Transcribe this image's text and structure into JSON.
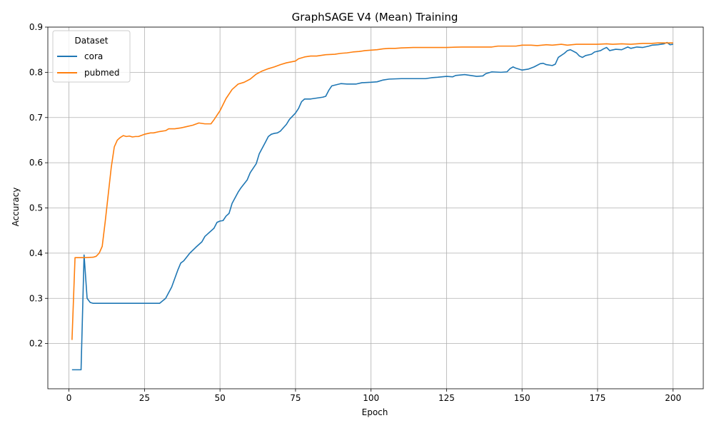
{
  "chart_data": {
    "type": "line",
    "title": "GraphSAGE V4 (Mean) Training",
    "xlabel": "Epoch",
    "ylabel": "Accuracy",
    "xlim": [
      -7,
      210
    ],
    "ylim": [
      0.1,
      0.9
    ],
    "xticks": [
      0,
      25,
      50,
      75,
      100,
      125,
      150,
      175,
      200
    ],
    "yticks": [
      0.2,
      0.3,
      0.4,
      0.5,
      0.6,
      0.7,
      0.8,
      0.9
    ],
    "grid": true,
    "legend": {
      "title": "Dataset",
      "placement": "top-left"
    },
    "series": [
      {
        "name": "cora",
        "color": "#1f77b4",
        "points": [
          [
            1,
            0.142
          ],
          [
            4,
            0.142
          ],
          [
            5,
            0.396
          ],
          [
            6,
            0.3
          ],
          [
            7,
            0.291
          ],
          [
            8,
            0.289
          ],
          [
            15,
            0.289
          ],
          [
            20,
            0.289
          ],
          [
            25,
            0.289
          ],
          [
            30,
            0.289
          ],
          [
            32,
            0.3
          ],
          [
            34,
            0.325
          ],
          [
            36,
            0.362
          ],
          [
            37,
            0.378
          ],
          [
            38,
            0.383
          ],
          [
            40,
            0.4
          ],
          [
            42,
            0.413
          ],
          [
            44,
            0.425
          ],
          [
            45,
            0.437
          ],
          [
            48,
            0.455
          ],
          [
            49,
            0.468
          ],
          [
            50,
            0.471
          ],
          [
            51,
            0.472
          ],
          [
            52,
            0.482
          ],
          [
            53,
            0.488
          ],
          [
            54,
            0.51
          ],
          [
            56,
            0.535
          ],
          [
            57,
            0.545
          ],
          [
            59,
            0.562
          ],
          [
            60,
            0.578
          ],
          [
            62,
            0.598
          ],
          [
            63,
            0.62
          ],
          [
            65,
            0.645
          ],
          [
            66,
            0.658
          ],
          [
            67,
            0.663
          ],
          [
            68,
            0.665
          ],
          [
            69,
            0.666
          ],
          [
            70,
            0.67
          ],
          [
            72,
            0.685
          ],
          [
            73,
            0.696
          ],
          [
            75,
            0.71
          ],
          [
            76,
            0.72
          ],
          [
            77,
            0.735
          ],
          [
            78,
            0.741
          ],
          [
            80,
            0.741
          ],
          [
            82,
            0.743
          ],
          [
            84,
            0.745
          ],
          [
            85,
            0.747
          ],
          [
            86,
            0.76
          ],
          [
            87,
            0.77
          ],
          [
            90,
            0.775
          ],
          [
            92,
            0.774
          ],
          [
            95,
            0.774
          ],
          [
            97,
            0.777
          ],
          [
            100,
            0.778
          ],
          [
            102,
            0.779
          ],
          [
            104,
            0.783
          ],
          [
            106,
            0.785
          ],
          [
            110,
            0.786
          ],
          [
            118,
            0.786
          ],
          [
            120,
            0.788
          ],
          [
            122,
            0.789
          ],
          [
            125,
            0.791
          ],
          [
            127,
            0.79
          ],
          [
            128,
            0.793
          ],
          [
            131,
            0.795
          ],
          [
            133,
            0.793
          ],
          [
            135,
            0.791
          ],
          [
            137,
            0.792
          ],
          [
            138,
            0.797
          ],
          [
            140,
            0.801
          ],
          [
            143,
            0.8
          ],
          [
            145,
            0.801
          ],
          [
            146,
            0.808
          ],
          [
            147,
            0.812
          ],
          [
            148,
            0.809
          ],
          [
            150,
            0.805
          ],
          [
            152,
            0.807
          ],
          [
            154,
            0.812
          ],
          [
            156,
            0.819
          ],
          [
            157,
            0.82
          ],
          [
            158,
            0.817
          ],
          [
            160,
            0.815
          ],
          [
            161,
            0.818
          ],
          [
            162,
            0.833
          ],
          [
            164,
            0.842
          ],
          [
            165,
            0.848
          ],
          [
            166,
            0.85
          ],
          [
            168,
            0.843
          ],
          [
            169,
            0.836
          ],
          [
            170,
            0.833
          ],
          [
            171,
            0.837
          ],
          [
            173,
            0.84
          ],
          [
            174,
            0.845
          ],
          [
            176,
            0.848
          ],
          [
            177,
            0.852
          ],
          [
            178,
            0.855
          ],
          [
            179,
            0.848
          ],
          [
            181,
            0.851
          ],
          [
            183,
            0.85
          ],
          [
            185,
            0.856
          ],
          [
            186,
            0.853
          ],
          [
            188,
            0.856
          ],
          [
            190,
            0.855
          ],
          [
            192,
            0.858
          ],
          [
            193,
            0.86
          ],
          [
            195,
            0.861
          ],
          [
            197,
            0.863
          ],
          [
            198,
            0.866
          ],
          [
            199,
            0.861
          ],
          [
            200,
            0.862
          ]
        ]
      },
      {
        "name": "pubmed",
        "color": "#ff7f0e",
        "points": [
          [
            1,
            0.208
          ],
          [
            2,
            0.39
          ],
          [
            5,
            0.39
          ],
          [
            8,
            0.391
          ],
          [
            9,
            0.393
          ],
          [
            10,
            0.4
          ],
          [
            11,
            0.415
          ],
          [
            12,
            0.47
          ],
          [
            13,
            0.53
          ],
          [
            14,
            0.59
          ],
          [
            15,
            0.635
          ],
          [
            16,
            0.65
          ],
          [
            17,
            0.656
          ],
          [
            18,
            0.66
          ],
          [
            19,
            0.658
          ],
          [
            20,
            0.659
          ],
          [
            21,
            0.657
          ],
          [
            22,
            0.658
          ],
          [
            23,
            0.658
          ],
          [
            25,
            0.663
          ],
          [
            27,
            0.666
          ],
          [
            28,
            0.666
          ],
          [
            30,
            0.669
          ],
          [
            32,
            0.671
          ],
          [
            33,
            0.675
          ],
          [
            35,
            0.675
          ],
          [
            37,
            0.677
          ],
          [
            39,
            0.68
          ],
          [
            41,
            0.683
          ],
          [
            43,
            0.688
          ],
          [
            45,
            0.686
          ],
          [
            47,
            0.686
          ],
          [
            48,
            0.695
          ],
          [
            50,
            0.715
          ],
          [
            52,
            0.742
          ],
          [
            54,
            0.762
          ],
          [
            55,
            0.768
          ],
          [
            56,
            0.774
          ],
          [
            58,
            0.778
          ],
          [
            60,
            0.785
          ],
          [
            62,
            0.796
          ],
          [
            64,
            0.803
          ],
          [
            66,
            0.808
          ],
          [
            68,
            0.812
          ],
          [
            70,
            0.817
          ],
          [
            72,
            0.821
          ],
          [
            75,
            0.825
          ],
          [
            76,
            0.83
          ],
          [
            78,
            0.834
          ],
          [
            80,
            0.836
          ],
          [
            82,
            0.836
          ],
          [
            85,
            0.839
          ],
          [
            88,
            0.84
          ],
          [
            90,
            0.842
          ],
          [
            92,
            0.843
          ],
          [
            94,
            0.845
          ],
          [
            96,
            0.846
          ],
          [
            98,
            0.848
          ],
          [
            100,
            0.849
          ],
          [
            102,
            0.85
          ],
          [
            104,
            0.852
          ],
          [
            106,
            0.853
          ],
          [
            108,
            0.853
          ],
          [
            110,
            0.854
          ],
          [
            114,
            0.855
          ],
          [
            118,
            0.855
          ],
          [
            120,
            0.855
          ],
          [
            125,
            0.855
          ],
          [
            130,
            0.856
          ],
          [
            135,
            0.856
          ],
          [
            140,
            0.856
          ],
          [
            142,
            0.858
          ],
          [
            145,
            0.858
          ],
          [
            148,
            0.858
          ],
          [
            150,
            0.86
          ],
          [
            153,
            0.86
          ],
          [
            155,
            0.859
          ],
          [
            158,
            0.861
          ],
          [
            160,
            0.86
          ],
          [
            163,
            0.862
          ],
          [
            165,
            0.86
          ],
          [
            168,
            0.862
          ],
          [
            170,
            0.862
          ],
          [
            173,
            0.862
          ],
          [
            175,
            0.862
          ],
          [
            178,
            0.863
          ],
          [
            180,
            0.862
          ],
          [
            183,
            0.863
          ],
          [
            186,
            0.862
          ],
          [
            188,
            0.863
          ],
          [
            190,
            0.864
          ],
          [
            193,
            0.864
          ],
          [
            195,
            0.865
          ],
          [
            197,
            0.865
          ],
          [
            200,
            0.865
          ]
        ]
      }
    ]
  }
}
